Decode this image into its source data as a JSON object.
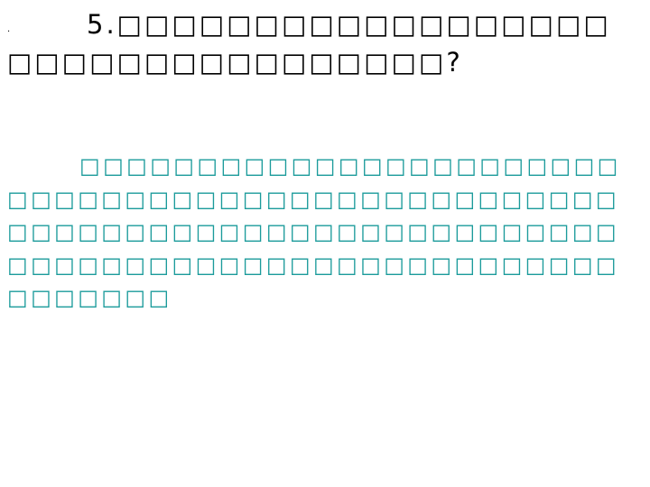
{
  "slide": {
    "bullet": ".",
    "question": "5.□□□□□□□□□□□□□□□□□□□□□□□□□□□□□□□□□□?",
    "answer": "□□□□□□□□□□□□□□□□□□□□□□□□□□□□□□□□□□□□□□□□□□□□□□□□□□□□□□□□□□□□□□□□□□□□□□□□□□□□□□□□□□□□□□□□□□□□□□□□□□□□□□□□□□□□"
  },
  "colors": {
    "question": "#000000",
    "answer": "#1b9b9b",
    "background": "#ffffff"
  }
}
